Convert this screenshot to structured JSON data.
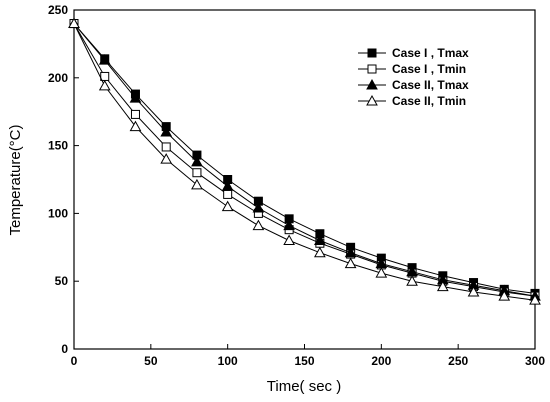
{
  "chart_data": {
    "type": "line",
    "xlabel": "Time( sec )",
    "ylabel": "Temperature(°C)",
    "xlim": [
      0,
      300
    ],
    "ylim": [
      0,
      250
    ],
    "xticks": [
      0,
      50,
      100,
      150,
      200,
      250,
      300
    ],
    "yticks": [
      0,
      50,
      100,
      150,
      200,
      250
    ],
    "grid": false,
    "legend_position": "top-right",
    "x": [
      0,
      20,
      40,
      60,
      80,
      100,
      120,
      140,
      160,
      180,
      200,
      220,
      240,
      260,
      280,
      300
    ],
    "series": [
      {
        "name": "Case I , Tmax",
        "marker": "square-filled",
        "values": [
          240,
          214,
          188,
          164,
          143,
          125,
          109,
          96,
          85,
          75,
          67,
          60,
          54,
          49,
          44,
          41
        ]
      },
      {
        "name": "Case I , Tmin",
        "marker": "square-open",
        "values": [
          240,
          201,
          173,
          149,
          130,
          114,
          100,
          88,
          78,
          70,
          62,
          56,
          50,
          46,
          42,
          39
        ]
      },
      {
        "name": "Case II, Tmax",
        "marker": "triangle-filled",
        "values": [
          240,
          213,
          185,
          160,
          138,
          120,
          104,
          91,
          80,
          71,
          63,
          57,
          51,
          47,
          43,
          39
        ]
      },
      {
        "name": "Case II, Tmin",
        "marker": "triangle-open",
        "values": [
          240,
          194,
          164,
          140,
          121,
          105,
          91,
          80,
          71,
          63,
          56,
          50,
          46,
          42,
          39,
          36
        ]
      }
    ]
  }
}
